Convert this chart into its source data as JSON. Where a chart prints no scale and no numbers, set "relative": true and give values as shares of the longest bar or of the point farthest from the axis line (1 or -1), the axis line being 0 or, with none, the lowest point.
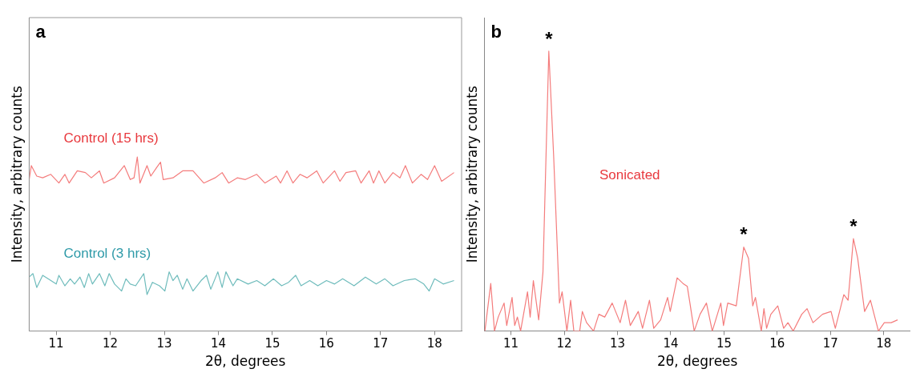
{
  "chart_data": [
    {
      "type": "line",
      "relative": true,
      "xlabel": "2θ, degrees",
      "ylabel": "Intensity, arbitrary counts",
      "xlim": [
        10.5,
        18.5
      ],
      "xticks": [
        11,
        12,
        13,
        14,
        15,
        16,
        17,
        18
      ],
      "grid": false,
      "marker": "none",
      "annotations": [
        "a"
      ],
      "series": [
        {
          "name": "Control (15 hrs)",
          "color": "#f47c7c",
          "x": [
            10.5,
            10.54,
            10.64,
            10.75,
            10.9,
            11.05,
            11.16,
            11.24,
            11.39,
            11.54,
            11.65,
            11.8,
            11.88,
            12.08,
            12.26,
            12.37,
            12.44,
            12.5,
            12.55,
            12.68,
            12.75,
            12.86,
            12.93,
            12.98,
            13.16,
            13.34,
            13.53,
            13.73,
            13.94,
            14.07,
            14.19,
            14.35,
            14.5,
            14.71,
            14.86,
            15.07,
            15.15,
            15.27,
            15.38,
            15.51,
            15.64,
            15.82,
            15.94,
            16.15,
            16.25,
            16.36,
            16.54,
            16.64,
            16.79,
            16.87,
            16.97,
            17.08,
            17.23,
            17.36,
            17.46,
            17.59,
            17.75,
            17.87,
            18.0,
            18.13,
            18.36
          ],
          "values": [
            0.87,
            0.95,
            0.89,
            0.88,
            0.9,
            0.85,
            0.9,
            0.85,
            0.92,
            0.91,
            0.88,
            0.92,
            0.85,
            0.88,
            0.95,
            0.87,
            0.88,
            1.0,
            0.85,
            0.95,
            0.89,
            0.94,
            0.97,
            0.87,
            0.88,
            0.92,
            0.92,
            0.85,
            0.88,
            0.91,
            0.85,
            0.88,
            0.87,
            0.9,
            0.85,
            0.89,
            0.85,
            0.92,
            0.85,
            0.9,
            0.88,
            0.92,
            0.85,
            0.92,
            0.86,
            0.91,
            0.92,
            0.85,
            0.92,
            0.85,
            0.92,
            0.85,
            0.91,
            0.88,
            0.95,
            0.85,
            0.9,
            0.87,
            0.95,
            0.86,
            0.91
          ]
        },
        {
          "name": "Control (3 hrs)",
          "color": "#6fbcbc",
          "x": [
            10.5,
            10.57,
            10.64,
            10.75,
            10.85,
            11.0,
            11.05,
            11.16,
            11.26,
            11.34,
            11.44,
            11.52,
            11.6,
            11.67,
            11.8,
            11.9,
            11.98,
            12.08,
            12.21,
            12.29,
            12.37,
            12.47,
            12.62,
            12.68,
            12.78,
            12.91,
            13.01,
            13.09,
            13.16,
            13.24,
            13.34,
            13.42,
            13.53,
            13.68,
            13.78,
            13.86,
            13.99,
            14.07,
            14.14,
            14.27,
            14.35,
            14.55,
            14.71,
            14.86,
            15.02,
            15.17,
            15.3,
            15.43,
            15.53,
            15.69,
            15.84,
            16.0,
            16.15,
            16.3,
            16.51,
            16.72,
            16.92,
            17.08,
            17.23,
            17.44,
            17.64,
            17.8,
            17.9,
            18.0,
            18.16,
            18.36
          ],
          "values": [
            0.31,
            0.33,
            0.25,
            0.32,
            0.3,
            0.27,
            0.32,
            0.26,
            0.3,
            0.27,
            0.31,
            0.25,
            0.33,
            0.27,
            0.33,
            0.26,
            0.33,
            0.27,
            0.23,
            0.3,
            0.27,
            0.26,
            0.33,
            0.21,
            0.28,
            0.26,
            0.23,
            0.34,
            0.29,
            0.32,
            0.24,
            0.3,
            0.23,
            0.29,
            0.32,
            0.24,
            0.34,
            0.25,
            0.34,
            0.26,
            0.3,
            0.27,
            0.29,
            0.26,
            0.3,
            0.26,
            0.28,
            0.32,
            0.26,
            0.29,
            0.26,
            0.29,
            0.27,
            0.3,
            0.26,
            0.31,
            0.27,
            0.3,
            0.26,
            0.29,
            0.3,
            0.27,
            0.23,
            0.3,
            0.27,
            0.29
          ]
        }
      ]
    },
    {
      "type": "line",
      "relative": true,
      "xlabel": "2θ, degrees",
      "ylabel": "Intensity, arbitrary counts",
      "xlim": [
        10.5,
        18.5
      ],
      "xticks": [
        11,
        12,
        13,
        14,
        15,
        16,
        17,
        18
      ],
      "grid": false,
      "marker": "none",
      "annotations": [
        "b",
        {
          "text": "*",
          "x": 11.71,
          "y": 1.0
        },
        {
          "text": "*",
          "x": 15.37,
          "y": 0.3
        },
        {
          "text": "*",
          "x": 17.43,
          "y": 0.33
        }
      ],
      "series": [
        {
          "name": "Sonicated",
          "color": "#f47c7c",
          "x": [
            10.51,
            10.62,
            10.69,
            10.76,
            10.87,
            10.92,
            11.02,
            11.07,
            11.12,
            11.18,
            11.31,
            11.36,
            11.42,
            11.52,
            11.6,
            11.71,
            11.8,
            11.91,
            11.96,
            12.05,
            12.12,
            12.18,
            12.29,
            12.34,
            12.42,
            12.55,
            12.65,
            12.76,
            12.9,
            13.05,
            13.15,
            13.24,
            13.39,
            13.47,
            13.6,
            13.68,
            13.81,
            13.94,
            13.99,
            14.12,
            14.23,
            14.31,
            14.36,
            14.44,
            14.55,
            14.67,
            14.78,
            14.94,
            14.99,
            15.07,
            15.23,
            15.37,
            15.46,
            15.54,
            15.59,
            15.7,
            15.75,
            15.8,
            15.88,
            16.01,
            16.12,
            16.2,
            16.3,
            16.46,
            16.56,
            16.67,
            16.85,
            17.01,
            17.09,
            17.25,
            17.33,
            17.43,
            17.51,
            17.64,
            17.75,
            17.9,
            18.01,
            18.14,
            18.26
          ],
          "values": [
            0,
            0.17,
            0,
            0.05,
            0.1,
            0.02,
            0.12,
            0.02,
            0.05,
            0,
            0.14,
            0.05,
            0.18,
            0.04,
            0.21,
            1.0,
            0.63,
            0.1,
            0.14,
            0,
            0.11,
            0,
            0,
            0.07,
            0.03,
            0,
            0.06,
            0.05,
            0.1,
            0.03,
            0.11,
            0.02,
            0.07,
            0.01,
            0.11,
            0.01,
            0.04,
            0.12,
            0.07,
            0.19,
            0.17,
            0.16,
            0.1,
            0,
            0.06,
            0.1,
            0,
            0.1,
            0.02,
            0.1,
            0.09,
            0.3,
            0.26,
            0.09,
            0.12,
            0,
            0.08,
            0.01,
            0.06,
            0.09,
            0.01,
            0.03,
            0,
            0.06,
            0.08,
            0.03,
            0.06,
            0.07,
            0.01,
            0.13,
            0.11,
            0.33,
            0.26,
            0.07,
            0.11,
            0,
            0.03,
            0.03,
            0.04
          ]
        }
      ]
    }
  ]
}
